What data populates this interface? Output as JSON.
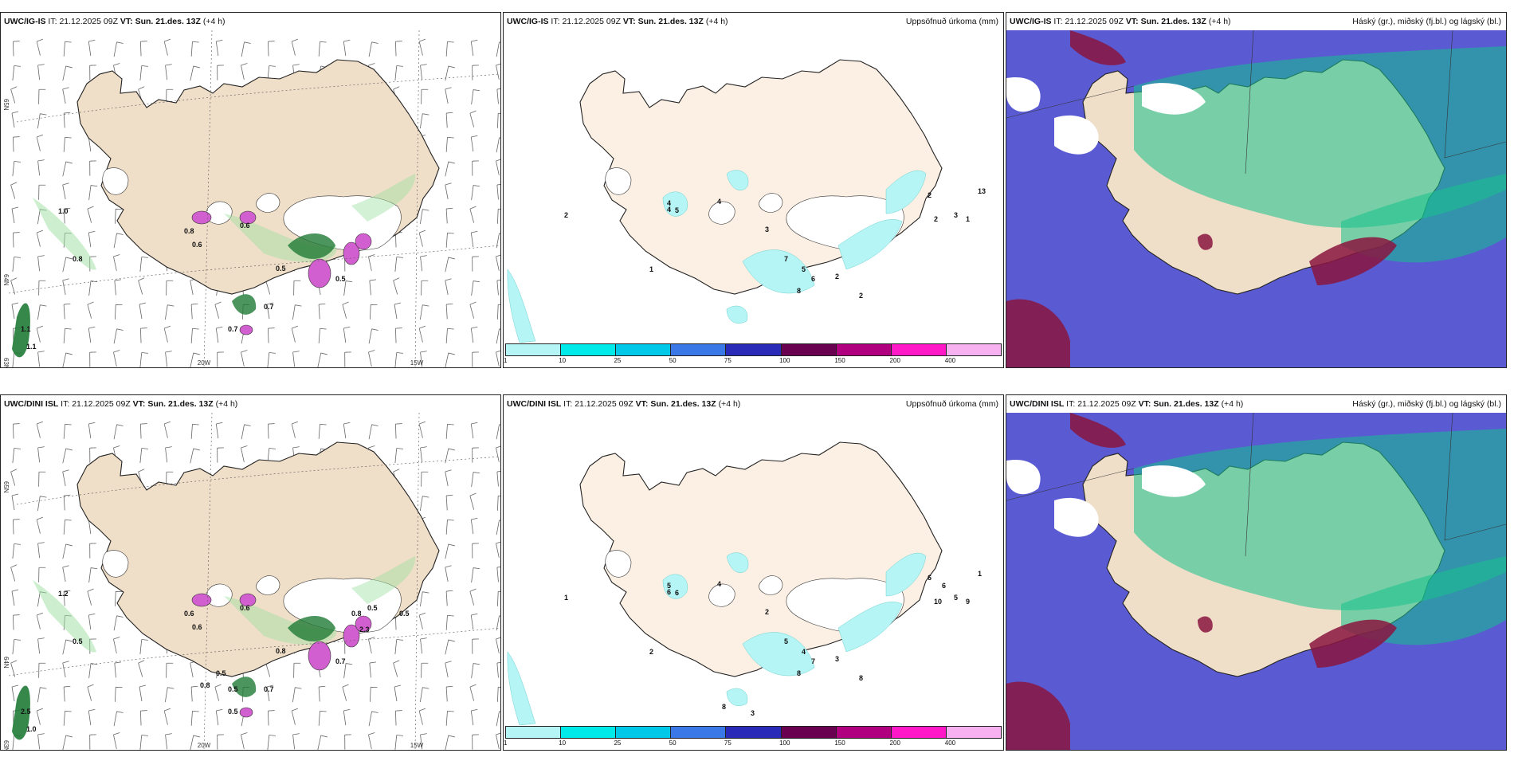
{
  "rows": [
    {
      "model": "UWC/IG-IS",
      "it_label": "IT:",
      "it_value": "21.12.2025 09Z",
      "vt_label": "VT:",
      "vt_value": "Sun. 21.des. 13Z",
      "lead": "(+4 h)",
      "panels": {
        "wind": {
          "lon_labels": [
            "20W",
            "15W"
          ],
          "lat_labels": [
            "65N",
            "64N",
            "63N"
          ],
          "values": [
            "1.0",
            "0.8",
            "0.8",
            "0.6",
            "0.6",
            "0.5",
            "0.5",
            "0.7",
            "1.1",
            "1.1",
            "0.7"
          ]
        },
        "precip": {
          "title": "Uppsöfnuð úrkoma (mm)",
          "values": [
            "2",
            "4",
            "4",
            "5",
            "4",
            "3",
            "7",
            "5",
            "6",
            "8",
            "1",
            "2",
            "2",
            "2",
            "2",
            "1",
            "13",
            "3"
          ]
        },
        "cloud": {
          "title": "Háský (gr.), miðský (fj.bl.) og lágský (bl.)"
        }
      }
    },
    {
      "model": "UWC/DINI ISL",
      "it_label": "IT:",
      "it_value": "21.12.2025 09Z",
      "vt_label": "VT:",
      "vt_value": "Sun. 21.des. 13Z",
      "lead": "(+4 h)",
      "panels": {
        "wind": {
          "lon_labels": [
            "20W",
            "15W"
          ],
          "lat_labels": [
            "65N",
            "64N",
            "63N"
          ],
          "values": [
            "1.2",
            "0.5",
            "0.6",
            "0.6",
            "0.6",
            "0.8",
            "0.7",
            "0.5",
            "2.5",
            "1.0",
            "0.7",
            "0.8",
            "0.5",
            "0.5",
            "0.8",
            "0.5",
            "0.5",
            "2.3"
          ]
        },
        "precip": {
          "title": "Uppsöfnuð úrkoma (mm)",
          "values": [
            "1",
            "6",
            "5",
            "6",
            "4",
            "2",
            "5",
            "4",
            "7",
            "8",
            "2",
            "3",
            "8",
            "6",
            "10",
            "9",
            "1",
            "5",
            "3",
            "8",
            "6"
          ]
        },
        "cloud": {
          "title": "Háský (gr.), miðský (fj.bl.) og lágský (bl.)"
        }
      }
    }
  ],
  "legend": {
    "ticks": [
      "1",
      "10",
      "25",
      "50",
      "75",
      "100",
      "150",
      "200",
      "400"
    ],
    "colors": [
      "#b6f5f5",
      "#00eaea",
      "#00c8e8",
      "#3a78e8",
      "#2a2ab8",
      "#6a0050",
      "#b00080",
      "#ff18c8",
      "#f7b0f0"
    ]
  },
  "colors": {
    "land": "#efdec8",
    "land_light": "#fcf0e4",
    "sea_wind": "#ffffff",
    "low_cloud": "#5a5ad2",
    "mid_cloud": "#16c28c",
    "high_cloud": "#8a1540",
    "precip_light": "#b6f5f5"
  }
}
